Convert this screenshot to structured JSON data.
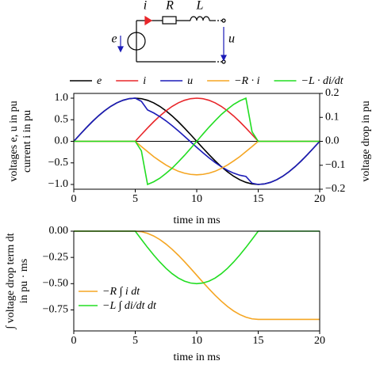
{
  "circuit": {
    "current": "i",
    "resistor": "R",
    "inductor": "L",
    "source": "e",
    "voltage": "u"
  },
  "chart_data": [
    {
      "type": "line",
      "ylabel": [
        "voltages e, u in pu",
        "current i in pu"
      ],
      "y2label": "voltage drop in pu",
      "xlabel": "time in ms",
      "x": [
        0,
        0.5,
        1,
        1.5,
        2,
        2.5,
        3,
        3.5,
        4,
        4.5,
        5,
        5.5,
        6,
        6.5,
        7,
        7.5,
        8,
        8.5,
        9,
        9.5,
        10,
        10.5,
        11,
        11.5,
        12,
        12.5,
        13,
        13.5,
        14,
        14.5,
        15,
        15.5,
        16,
        16.5,
        17,
        17.5,
        18,
        18.5,
        19,
        19.5,
        20
      ],
      "xlim": [
        0,
        20
      ],
      "xticks": [
        0,
        5,
        10,
        15,
        20
      ],
      "ylim": [
        -1.11,
        1.11
      ],
      "yticks": [
        {
          "value": -1,
          "label": "−1.0"
        },
        {
          "value": -0.5,
          "label": "−0.5"
        },
        {
          "value": 0,
          "label": "0.0"
        },
        {
          "value": 0.5,
          "label": "0.5"
        },
        {
          "value": 1,
          "label": "1.0"
        }
      ],
      "y2lim": [
        -0.2,
        0.2
      ],
      "y2ticks": [
        {
          "value": -0.2,
          "label": "−0.2"
        },
        {
          "value": -0.1,
          "label": "−0.1"
        },
        {
          "value": 0,
          "label": "0.0"
        },
        {
          "value": 0.1,
          "label": "0.1"
        },
        {
          "value": 0.2,
          "label": "0.2"
        }
      ],
      "zero_line": true,
      "legend": "above",
      "series": [
        {
          "name": "e",
          "color": "#000000",
          "values": [
            0,
            0.156,
            0.309,
            0.454,
            0.588,
            0.707,
            0.809,
            0.891,
            0.951,
            0.988,
            1,
            0.988,
            0.951,
            0.891,
            0.809,
            0.707,
            0.588,
            0.454,
            0.309,
            0.156,
            0,
            -0.156,
            -0.309,
            -0.454,
            -0.588,
            -0.707,
            -0.809,
            -0.891,
            -0.951,
            -0.988,
            -1,
            -0.988,
            -0.951,
            -0.891,
            -0.809,
            -0.707,
            -0.588,
            -0.454,
            -0.309,
            -0.156,
            0
          ]
        },
        {
          "name": "i",
          "color": "#e8262a",
          "values": [
            0,
            0,
            0,
            0,
            0,
            0,
            0,
            0,
            0,
            0,
            0,
            0.156,
            0.309,
            0.454,
            0.588,
            0.707,
            0.809,
            0.891,
            0.951,
            0.988,
            1,
            0.988,
            0.951,
            0.891,
            0.809,
            0.707,
            0.588,
            0.454,
            0.309,
            0.156,
            0,
            0,
            0,
            0,
            0,
            0,
            0,
            0,
            0,
            0,
            0
          ]
        },
        {
          "name": "u",
          "color": "#1c1cb8",
          "values": [
            0,
            0.156,
            0.309,
            0.454,
            0.588,
            0.707,
            0.809,
            0.891,
            0.951,
            0.988,
            1,
            0.926,
            0.728,
            0.658,
            0.573,
            0.474,
            0.363,
            0.243,
            0.117,
            -0.012,
            -0.14,
            -0.264,
            -0.383,
            -0.493,
            -0.589,
            -0.672,
            -0.737,
            -0.786,
            -0.814,
            -0.97,
            -1,
            -0.988,
            -0.951,
            -0.891,
            -0.809,
            -0.707,
            -0.588,
            -0.454,
            -0.309,
            -0.156,
            0
          ]
        },
        {
          "name": "−R · i",
          "color": "#f5a623",
          "axis": "y2",
          "values": [
            0,
            0,
            0,
            0,
            0,
            0,
            0,
            0,
            0,
            0,
            0,
            -0.022,
            -0.043,
            -0.064,
            -0.082,
            -0.099,
            -0.113,
            -0.125,
            -0.133,
            -0.138,
            -0.14,
            -0.138,
            -0.133,
            -0.125,
            -0.113,
            -0.099,
            -0.082,
            -0.064,
            -0.043,
            -0.022,
            0,
            0,
            0,
            0,
            0,
            0,
            0,
            0,
            0,
            0,
            0
          ]
        },
        {
          "name": "−L · di/dt",
          "color": "#22dd22",
          "axis": "y2",
          "values": [
            0,
            0,
            0,
            0,
            0,
            0,
            0,
            0,
            0,
            0,
            0,
            -0.04,
            -0.18,
            -0.169,
            -0.154,
            -0.134,
            -0.112,
            -0.086,
            -0.059,
            -0.03,
            0,
            0.03,
            0.059,
            0.086,
            0.112,
            0.134,
            0.154,
            0.169,
            0.18,
            0.04,
            0,
            0,
            0,
            0,
            0,
            0,
            0,
            0,
            0,
            0,
            0
          ]
        }
      ]
    },
    {
      "type": "line",
      "ylabel": [
        "∫ voltage drop term dt",
        "in pu · ms"
      ],
      "xlabel": "time in ms",
      "x": [
        0,
        0.5,
        1,
        1.5,
        2,
        2.5,
        3,
        3.5,
        4,
        4.5,
        5,
        5.5,
        6,
        6.5,
        7,
        7.5,
        8,
        8.5,
        9,
        9.5,
        10,
        10.5,
        11,
        11.5,
        12,
        12.5,
        13,
        13.5,
        14,
        14.5,
        15,
        15.5,
        16,
        16.5,
        17,
        17.5,
        18,
        18.5,
        19,
        19.5,
        20
      ],
      "xlim": [
        0,
        20
      ],
      "xticks": [
        0,
        5,
        10,
        15,
        20
      ],
      "ylim": [
        -0.95,
        0
      ],
      "yticks": [
        {
          "value": -0.75,
          "label": "−0.75"
        },
        {
          "value": -0.5,
          "label": "−0.50"
        },
        {
          "value": -0.25,
          "label": "−0.25"
        },
        {
          "value": 0,
          "label": "0.00"
        }
      ],
      "legend": "lower left",
      "series": [
        {
          "name": "−R ∫ i dt",
          "color": "#f5a623",
          "values": [
            0,
            0,
            0,
            0,
            0,
            0,
            0,
            0,
            0,
            0,
            0,
            -0.005,
            -0.021,
            -0.046,
            -0.08,
            -0.123,
            -0.173,
            -0.229,
            -0.29,
            -0.354,
            -0.42,
            -0.486,
            -0.55,
            -0.611,
            -0.667,
            -0.717,
            -0.76,
            -0.794,
            -0.819,
            -0.835,
            -0.84,
            -0.84,
            -0.84,
            -0.84,
            -0.84,
            -0.84,
            -0.84,
            -0.84,
            -0.84,
            -0.84,
            -0.84
          ]
        },
        {
          "name": "−L ∫ di/dt dt",
          "color": "#22dd22",
          "values": [
            0,
            0,
            0,
            0,
            0,
            0,
            0,
            0,
            0,
            0,
            0,
            -0.078,
            -0.155,
            -0.227,
            -0.294,
            -0.354,
            -0.405,
            -0.446,
            -0.476,
            -0.494,
            -0.5,
            -0.494,
            -0.476,
            -0.446,
            -0.405,
            -0.354,
            -0.294,
            -0.227,
            -0.155,
            -0.078,
            0,
            0,
            0,
            0,
            0,
            0,
            0,
            0,
            0,
            0,
            0
          ]
        }
      ]
    }
  ]
}
